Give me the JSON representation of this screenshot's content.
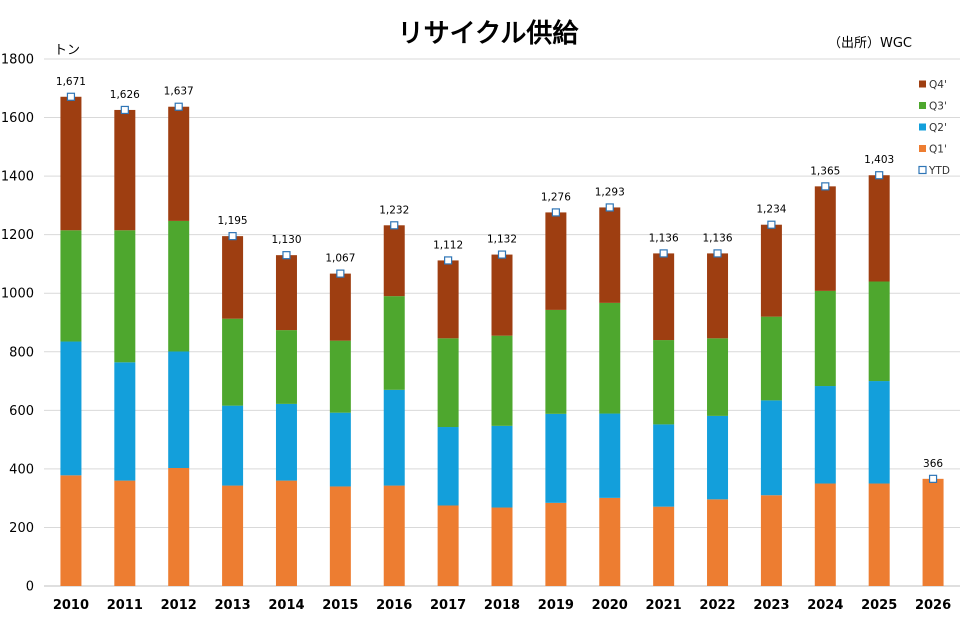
{
  "chart_data": {
    "type": "bar",
    "stacked": true,
    "title": "リサイクル供給",
    "source": "（出所）WGC",
    "ylabel": "トン",
    "ylim": [
      0,
      1800
    ],
    "yticks": [
      0,
      200,
      400,
      600,
      800,
      1000,
      1200,
      1400,
      1600,
      1800
    ],
    "grid": true,
    "legend_position": "right",
    "categories": [
      "2010",
      "2011",
      "2012",
      "2013",
      "2014",
      "2015",
      "2016",
      "2017",
      "2018",
      "2019",
      "2020",
      "2021",
      "2022",
      "2023",
      "2024",
      "2025",
      "2026"
    ],
    "series": [
      {
        "name": "Q1'",
        "color": "#ED7D31",
        "values": [
          378,
          360,
          403,
          343,
          360,
          340,
          343,
          275,
          268,
          284,
          301,
          271,
          296,
          310,
          350,
          350,
          366
        ]
      },
      {
        "name": "Q2'",
        "color": "#139FDB",
        "values": [
          457,
          404,
          398,
          273,
          262,
          252,
          327,
          268,
          279,
          304,
          288,
          281,
          285,
          324,
          333,
          350,
          null
        ]
      },
      {
        "name": "Q3'",
        "color": "#4EA72E",
        "values": [
          380,
          451,
          446,
          297,
          252,
          246,
          320,
          303,
          308,
          355,
          378,
          288,
          265,
          286,
          325,
          340,
          null
        ]
      },
      {
        "name": "Q4'",
        "color": "#9E3E11",
        "values": [
          456,
          411,
          390,
          282,
          256,
          229,
          242,
          266,
          277,
          333,
          326,
          296,
          290,
          314,
          357,
          363,
          null
        ]
      }
    ],
    "ytd": {
      "name": "YTD",
      "values": [
        1671,
        1626,
        1637,
        1195,
        1130,
        1067,
        1232,
        1112,
        1132,
        1276,
        1293,
        1136,
        1136,
        1234,
        1365,
        1403,
        366
      ]
    },
    "ytd_labels": [
      "1,671",
      "1,626",
      "1,637",
      "1,195",
      "1,130",
      "1,067",
      "1,232",
      "1,112",
      "1,132",
      "1,276",
      "1,293",
      "1,136",
      "1,136",
      "1,234",
      "1,365",
      "1,403",
      "366"
    ]
  }
}
